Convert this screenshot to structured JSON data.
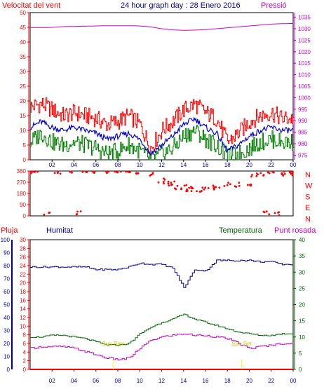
{
  "header": {
    "left_label": "Velocitat del vent",
    "title": "24 hour graph day : 28 Enero 2016",
    "right_label": "Pressió"
  },
  "lower_header": {
    "rain": "Pluja",
    "humidity": "Humitat",
    "temperature": "Temperatura",
    "dewpoint": "Punt rosada"
  },
  "colors": {
    "wind_max": "#ff0000",
    "wind_avg": "#0000cc",
    "wind_min": "#008000",
    "pressure": "#cc00cc",
    "direction": "#ff0000",
    "humidity": "#000099",
    "temperature": "#006600",
    "dewpoint": "#cc00cc",
    "rain": "#ff0000",
    "sun": "#ffff00",
    "frame": "#000000"
  },
  "chart_data": [
    {
      "type": "line",
      "name": "wind_pressure",
      "x_ticks": [
        "02",
        "04",
        "06",
        "08",
        "10",
        "12",
        "14",
        "16",
        "18",
        "20",
        "22",
        "00"
      ],
      "y_left_ticks": [
        "0",
        "5",
        "10",
        "15",
        "20",
        "25",
        "30",
        "35",
        "40",
        "45",
        "50"
      ],
      "y_left_range": [
        0,
        50
      ],
      "y_right_ticks": [
        "975",
        "980",
        "985",
        "990",
        "995",
        "1000",
        "1005",
        "1010",
        "1015",
        "1020",
        "1025",
        "1030",
        "1035"
      ],
      "y_right_range": [
        973,
        1037
      ],
      "hours": [
        0,
        1,
        2,
        3,
        4,
        5,
        6,
        7,
        8,
        9,
        10,
        11,
        12,
        13,
        14,
        15,
        16,
        17,
        18,
        19,
        20,
        21,
        22,
        23,
        24
      ],
      "series": [
        {
          "key": "wind_max",
          "values": [
            18,
            19,
            17,
            15,
            16,
            15,
            14,
            12,
            13,
            15,
            12,
            4,
            10,
            13,
            17,
            19,
            16,
            14,
            6,
            9,
            13,
            15,
            16,
            14,
            14
          ]
        },
        {
          "key": "wind_avg",
          "values": [
            11,
            13,
            11,
            10,
            11,
            10,
            9,
            7,
            8,
            9,
            7,
            2,
            5,
            8,
            12,
            14,
            11,
            9,
            3,
            5,
            8,
            10,
            11,
            10,
            10
          ]
        },
        {
          "key": "wind_min",
          "values": [
            6,
            9,
            6,
            5,
            6,
            5,
            4,
            2,
            3,
            5,
            3,
            0,
            2,
            4,
            8,
            10,
            7,
            5,
            1,
            2,
            4,
            6,
            7,
            6,
            6
          ]
        },
        {
          "key": "pressure",
          "values": [
            1030.5,
            1030.5,
            1030.6,
            1030.9,
            1031.0,
            1031.1,
            1031.2,
            1031.3,
            1031.3,
            1031.3,
            1031.2,
            1030.8,
            1030.0,
            1029.5,
            1029.3,
            1029.4,
            1029.6,
            1030.0,
            1030.4,
            1030.8,
            1031.2,
            1031.6,
            1032.0,
            1032.2,
            1032.3
          ]
        }
      ]
    },
    {
      "type": "scatter",
      "name": "wind_direction",
      "y_left_ticks": [
        "0",
        "90",
        "180",
        "270",
        "360"
      ],
      "y_range": [
        0,
        360
      ],
      "compass_labels": [
        "N",
        "W",
        "S",
        "E",
        "N"
      ],
      "hours": [
        0,
        0.5,
        1.5,
        2.5,
        3.5,
        4.5,
        5,
        6,
        7,
        8,
        9,
        10,
        11,
        12,
        12.5,
        13,
        13.5,
        14,
        14.5,
        15,
        15.5,
        16,
        16.5,
        17,
        18,
        19,
        20,
        20.5,
        21,
        21.5,
        22,
        22.5,
        23,
        23.5,
        24
      ],
      "values": [
        355,
        355,
        20,
        355,
        355,
        20,
        355,
        360,
        360,
        360,
        360,
        355,
        330,
        285,
        260,
        260,
        225,
        230,
        210,
        220,
        200,
        225,
        220,
        235,
        250,
        250,
        255,
        325,
        340,
        20,
        350,
        15,
        340,
        340,
        340
      ]
    },
    {
      "type": "line",
      "name": "temp_hum_dew_rain",
      "x_ticks": [
        "02",
        "04",
        "06",
        "08",
        "10",
        "12",
        "14",
        "16",
        "18",
        "20",
        "22",
        "00"
      ],
      "y_hum_ticks": [
        "0",
        "10",
        "20",
        "30",
        "40",
        "50",
        "60",
        "70",
        "80",
        "90",
        "100"
      ],
      "y_hum_range": [
        0,
        100
      ],
      "y_rain_ticks": [
        "0",
        "2",
        "4",
        "6",
        "8",
        "10",
        "12",
        "14",
        "16",
        "18",
        "20",
        "22",
        "24",
        "26",
        "28",
        "30"
      ],
      "y_rain_range": [
        0,
        30
      ],
      "y_temp_ticks": [
        "0",
        "5",
        "10",
        "15",
        "20",
        "25",
        "30",
        "35",
        "40"
      ],
      "y_temp_range": [
        0,
        40
      ],
      "hours": [
        0,
        1,
        2,
        3,
        4,
        5,
        6,
        7,
        8,
        9,
        10,
        11,
        12,
        13,
        14,
        15,
        16,
        17,
        18,
        19,
        20,
        21,
        22,
        23,
        24
      ],
      "series": [
        {
          "key": "humidity",
          "values": [
            79,
            79,
            79,
            79,
            79,
            79,
            77,
            77,
            77,
            79,
            82,
            81,
            81,
            78,
            63,
            77,
            76,
            84,
            84,
            84,
            84,
            83,
            83,
            81,
            81
          ]
        },
        {
          "key": "temperature",
          "values": [
            10,
            10,
            10.5,
            10.5,
            10,
            9.5,
            8.5,
            7.5,
            7.5,
            8,
            11,
            13,
            14.5,
            15.5,
            17,
            15.5,
            14.5,
            13.5,
            12.5,
            11.5,
            11,
            10.5,
            10.5,
            11,
            11
          ]
        },
        {
          "key": "dewpoint",
          "values": [
            6.5,
            7,
            7,
            7,
            6.5,
            5.5,
            4.5,
            3.5,
            3,
            3.5,
            6.5,
            9,
            10,
            10.5,
            11,
            10.5,
            10.5,
            10,
            9.5,
            8,
            6.5,
            7,
            7.5,
            8,
            8
          ]
        },
        {
          "key": "rain",
          "values": [
            0,
            0,
            0,
            0,
            0,
            0,
            0,
            0,
            0,
            0,
            0,
            0,
            0,
            0,
            0,
            0,
            0,
            0,
            0,
            0,
            0,
            0,
            0,
            0,
            0
          ]
        }
      ],
      "annotations": [
        {
          "text": "Sun Rise",
          "hour": 7.6
        },
        {
          "text": "Sun Set",
          "hour": 19.3
        }
      ]
    }
  ]
}
